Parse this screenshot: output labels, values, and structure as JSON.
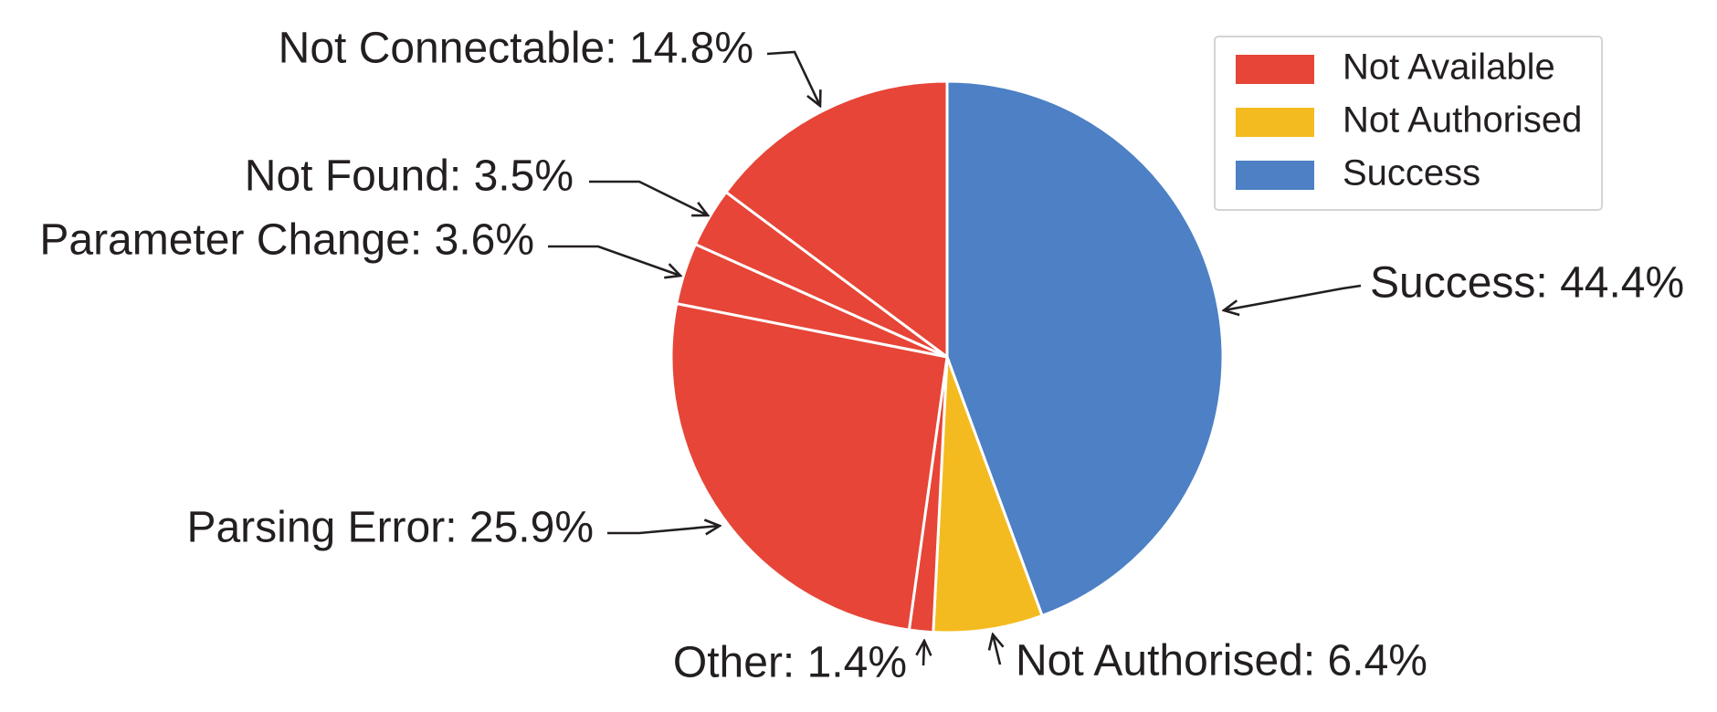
{
  "chart_data": {
    "type": "pie",
    "slices": [
      {
        "label": "Success",
        "value": 44.4,
        "percent_label": "44.4%",
        "group": "Success"
      },
      {
        "label": "Not Authorised",
        "value": 6.4,
        "percent_label": "6.4%",
        "group": "Not Authorised"
      },
      {
        "label": "Other",
        "value": 1.4,
        "percent_label": "1.4%",
        "group": "Not Available"
      },
      {
        "label": "Parsing Error",
        "value": 25.9,
        "percent_label": "25.9%",
        "group": "Not Available"
      },
      {
        "label": "Parameter Change",
        "value": 3.6,
        "percent_label": "3.6%",
        "group": "Not Available"
      },
      {
        "label": "Not Found",
        "value": 3.5,
        "percent_label": "3.5%",
        "group": "Not Available"
      },
      {
        "label": "Not Connectable",
        "value": 14.8,
        "percent_label": "14.8%",
        "group": "Not Available"
      }
    ],
    "legend": {
      "placement": "top-right",
      "entries": [
        {
          "name": "Not Available",
          "color": "#e64537"
        },
        {
          "name": "Not Authorised",
          "color": "#f4bb20"
        },
        {
          "name": "Success",
          "color": "#4d80c4"
        }
      ]
    },
    "colors": {
      "Not Available": "#e64537",
      "Not Authorised": "#f4bb20",
      "Success": "#4d80c4",
      "slice_border": "#ffffff",
      "text": "#231f20"
    }
  }
}
